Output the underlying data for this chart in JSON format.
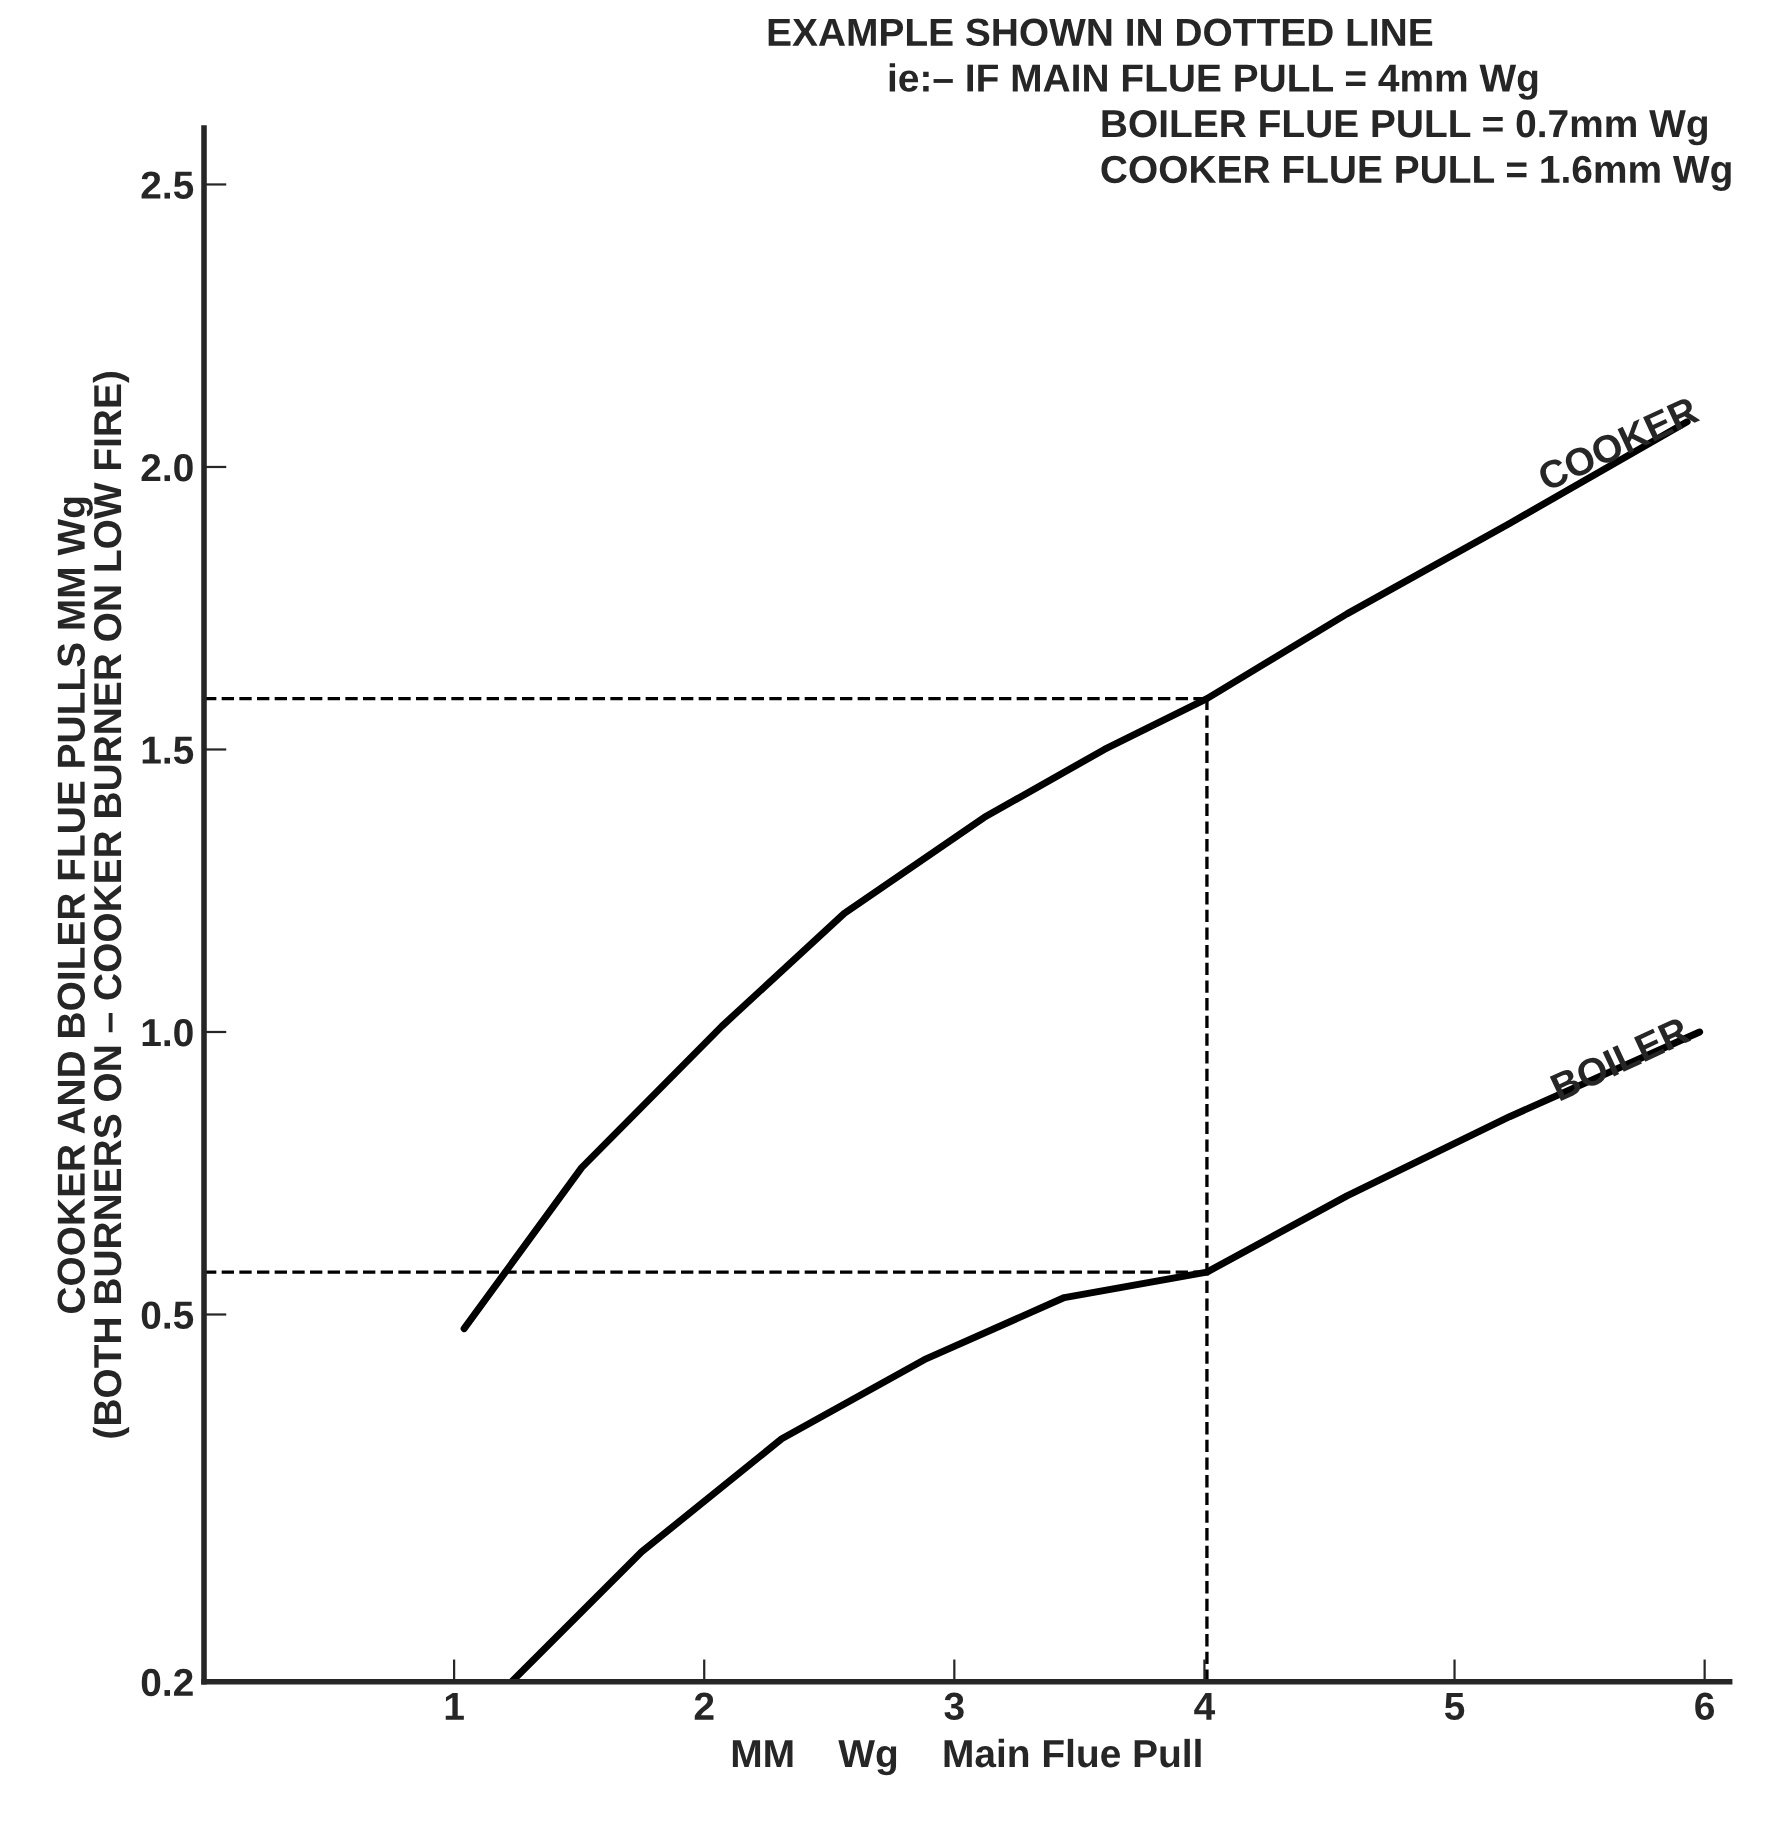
{
  "chart_data": {
    "type": "line",
    "title": "EXAMPLE SHOWN IN DOTTED LINE",
    "annotations": [
      "ie:– IF MAIN FLUE PULL = 4mm Wg",
      "BOILER FLUE PULL = 0.7mm Wg",
      "COOKER FLUE PULL = 1.6mm Wg"
    ],
    "xlabel": "MM    Wg    Main Flue Pull",
    "ylabel": "COOKER AND BOILER FLUE PULLS MM Wg\n(BOTH BURNERS ON – COOKER BURNER ON LOW FIRE)",
    "xlim": [
      0,
      6.1
    ],
    "xticks": [
      1,
      2,
      3,
      4,
      5,
      6
    ],
    "ylim": [
      -0.15,
      2.6
    ],
    "yticks": [
      {
        "value": -0.15,
        "label": "0.2"
      },
      0.5,
      {
        "value": 1,
        "label": "1.0"
      },
      1.5,
      {
        "value": 2,
        "label": "2.0"
      },
      2.5
    ],
    "grid": false,
    "legend": false,
    "marker": "none",
    "line_style": "solid",
    "series": [
      {
        "name": "COOKER",
        "color": "#000000",
        "x": [
          1.04,
          1.51,
          2.07,
          2.56,
          3.12,
          3.6,
          4.01,
          4.57,
          5.22,
          5.93
        ],
        "values": [
          0.475,
          0.76,
          1.01,
          1.21,
          1.38,
          1.5,
          1.59,
          1.74,
          1.9,
          2.08
        ]
      },
      {
        "name": "BOILER",
        "color": "#000000",
        "x": [
          1.23,
          1.75,
          2.31,
          2.88,
          3.44,
          4.01,
          4.57,
          5.22,
          5.98
        ],
        "values": [
          -0.15,
          0.08,
          0.28,
          0.42,
          0.53,
          0.575,
          0.71,
          0.85,
          1.0
        ]
      }
    ],
    "ref_lines": [
      {
        "axis": "x",
        "value": 4.01,
        "line_style": "dashed",
        "color": "#000000"
      },
      {
        "axis": "y",
        "value": 0.575,
        "line_style": "dashed",
        "color": "#000000"
      },
      {
        "axis": "y",
        "value": 1.59,
        "line_style": "dashed",
        "color": "#000000"
      }
    ]
  }
}
